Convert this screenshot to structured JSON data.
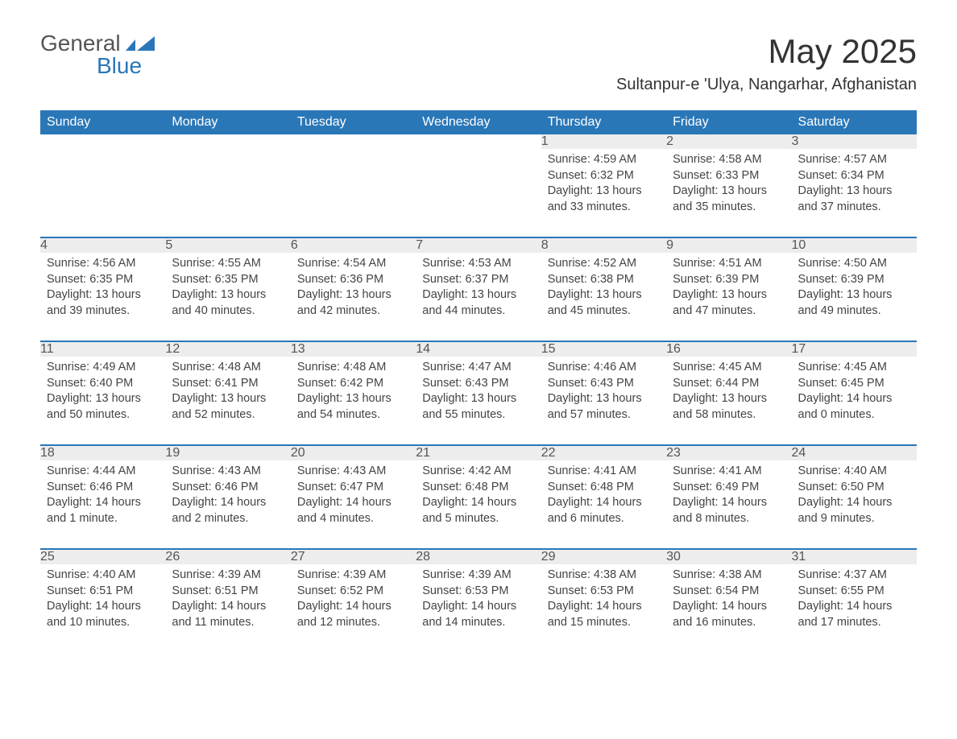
{
  "logo": {
    "word1": "General",
    "word2": "Blue"
  },
  "title": "May 2025",
  "location": "Sultanpur-e 'Ulya, Nangarhar, Afghanistan",
  "colors": {
    "header_bg": "#2a77b8",
    "header_text": "#ffffff",
    "daynum_bg": "#ededed",
    "row_border": "#2a77b8",
    "body_text": "#444444",
    "logo_gray": "#555555",
    "logo_blue": "#2a77b8"
  },
  "columns": [
    "Sunday",
    "Monday",
    "Tuesday",
    "Wednesday",
    "Thursday",
    "Friday",
    "Saturday"
  ],
  "weeks": [
    [
      null,
      null,
      null,
      null,
      {
        "n": "1",
        "sunrise": "4:59 AM",
        "sunset": "6:32 PM",
        "daylight": "13 hours and 33 minutes."
      },
      {
        "n": "2",
        "sunrise": "4:58 AM",
        "sunset": "6:33 PM",
        "daylight": "13 hours and 35 minutes."
      },
      {
        "n": "3",
        "sunrise": "4:57 AM",
        "sunset": "6:34 PM",
        "daylight": "13 hours and 37 minutes."
      }
    ],
    [
      {
        "n": "4",
        "sunrise": "4:56 AM",
        "sunset": "6:35 PM",
        "daylight": "13 hours and 39 minutes."
      },
      {
        "n": "5",
        "sunrise": "4:55 AM",
        "sunset": "6:35 PM",
        "daylight": "13 hours and 40 minutes."
      },
      {
        "n": "6",
        "sunrise": "4:54 AM",
        "sunset": "6:36 PM",
        "daylight": "13 hours and 42 minutes."
      },
      {
        "n": "7",
        "sunrise": "4:53 AM",
        "sunset": "6:37 PM",
        "daylight": "13 hours and 44 minutes."
      },
      {
        "n": "8",
        "sunrise": "4:52 AM",
        "sunset": "6:38 PM",
        "daylight": "13 hours and 45 minutes."
      },
      {
        "n": "9",
        "sunrise": "4:51 AM",
        "sunset": "6:39 PM",
        "daylight": "13 hours and 47 minutes."
      },
      {
        "n": "10",
        "sunrise": "4:50 AM",
        "sunset": "6:39 PM",
        "daylight": "13 hours and 49 minutes."
      }
    ],
    [
      {
        "n": "11",
        "sunrise": "4:49 AM",
        "sunset": "6:40 PM",
        "daylight": "13 hours and 50 minutes."
      },
      {
        "n": "12",
        "sunrise": "4:48 AM",
        "sunset": "6:41 PM",
        "daylight": "13 hours and 52 minutes."
      },
      {
        "n": "13",
        "sunrise": "4:48 AM",
        "sunset": "6:42 PM",
        "daylight": "13 hours and 54 minutes."
      },
      {
        "n": "14",
        "sunrise": "4:47 AM",
        "sunset": "6:43 PM",
        "daylight": "13 hours and 55 minutes."
      },
      {
        "n": "15",
        "sunrise": "4:46 AM",
        "sunset": "6:43 PM",
        "daylight": "13 hours and 57 minutes."
      },
      {
        "n": "16",
        "sunrise": "4:45 AM",
        "sunset": "6:44 PM",
        "daylight": "13 hours and 58 minutes."
      },
      {
        "n": "17",
        "sunrise": "4:45 AM",
        "sunset": "6:45 PM",
        "daylight": "14 hours and 0 minutes."
      }
    ],
    [
      {
        "n": "18",
        "sunrise": "4:44 AM",
        "sunset": "6:46 PM",
        "daylight": "14 hours and 1 minute."
      },
      {
        "n": "19",
        "sunrise": "4:43 AM",
        "sunset": "6:46 PM",
        "daylight": "14 hours and 2 minutes."
      },
      {
        "n": "20",
        "sunrise": "4:43 AM",
        "sunset": "6:47 PM",
        "daylight": "14 hours and 4 minutes."
      },
      {
        "n": "21",
        "sunrise": "4:42 AM",
        "sunset": "6:48 PM",
        "daylight": "14 hours and 5 minutes."
      },
      {
        "n": "22",
        "sunrise": "4:41 AM",
        "sunset": "6:48 PM",
        "daylight": "14 hours and 6 minutes."
      },
      {
        "n": "23",
        "sunrise": "4:41 AM",
        "sunset": "6:49 PM",
        "daylight": "14 hours and 8 minutes."
      },
      {
        "n": "24",
        "sunrise": "4:40 AM",
        "sunset": "6:50 PM",
        "daylight": "14 hours and 9 minutes."
      }
    ],
    [
      {
        "n": "25",
        "sunrise": "4:40 AM",
        "sunset": "6:51 PM",
        "daylight": "14 hours and 10 minutes."
      },
      {
        "n": "26",
        "sunrise": "4:39 AM",
        "sunset": "6:51 PM",
        "daylight": "14 hours and 11 minutes."
      },
      {
        "n": "27",
        "sunrise": "4:39 AM",
        "sunset": "6:52 PM",
        "daylight": "14 hours and 12 minutes."
      },
      {
        "n": "28",
        "sunrise": "4:39 AM",
        "sunset": "6:53 PM",
        "daylight": "14 hours and 14 minutes."
      },
      {
        "n": "29",
        "sunrise": "4:38 AM",
        "sunset": "6:53 PM",
        "daylight": "14 hours and 15 minutes."
      },
      {
        "n": "30",
        "sunrise": "4:38 AM",
        "sunset": "6:54 PM",
        "daylight": "14 hours and 16 minutes."
      },
      {
        "n": "31",
        "sunrise": "4:37 AM",
        "sunset": "6:55 PM",
        "daylight": "14 hours and 17 minutes."
      }
    ]
  ],
  "labels": {
    "sunrise": "Sunrise: ",
    "sunset": "Sunset: ",
    "daylight": "Daylight: "
  }
}
